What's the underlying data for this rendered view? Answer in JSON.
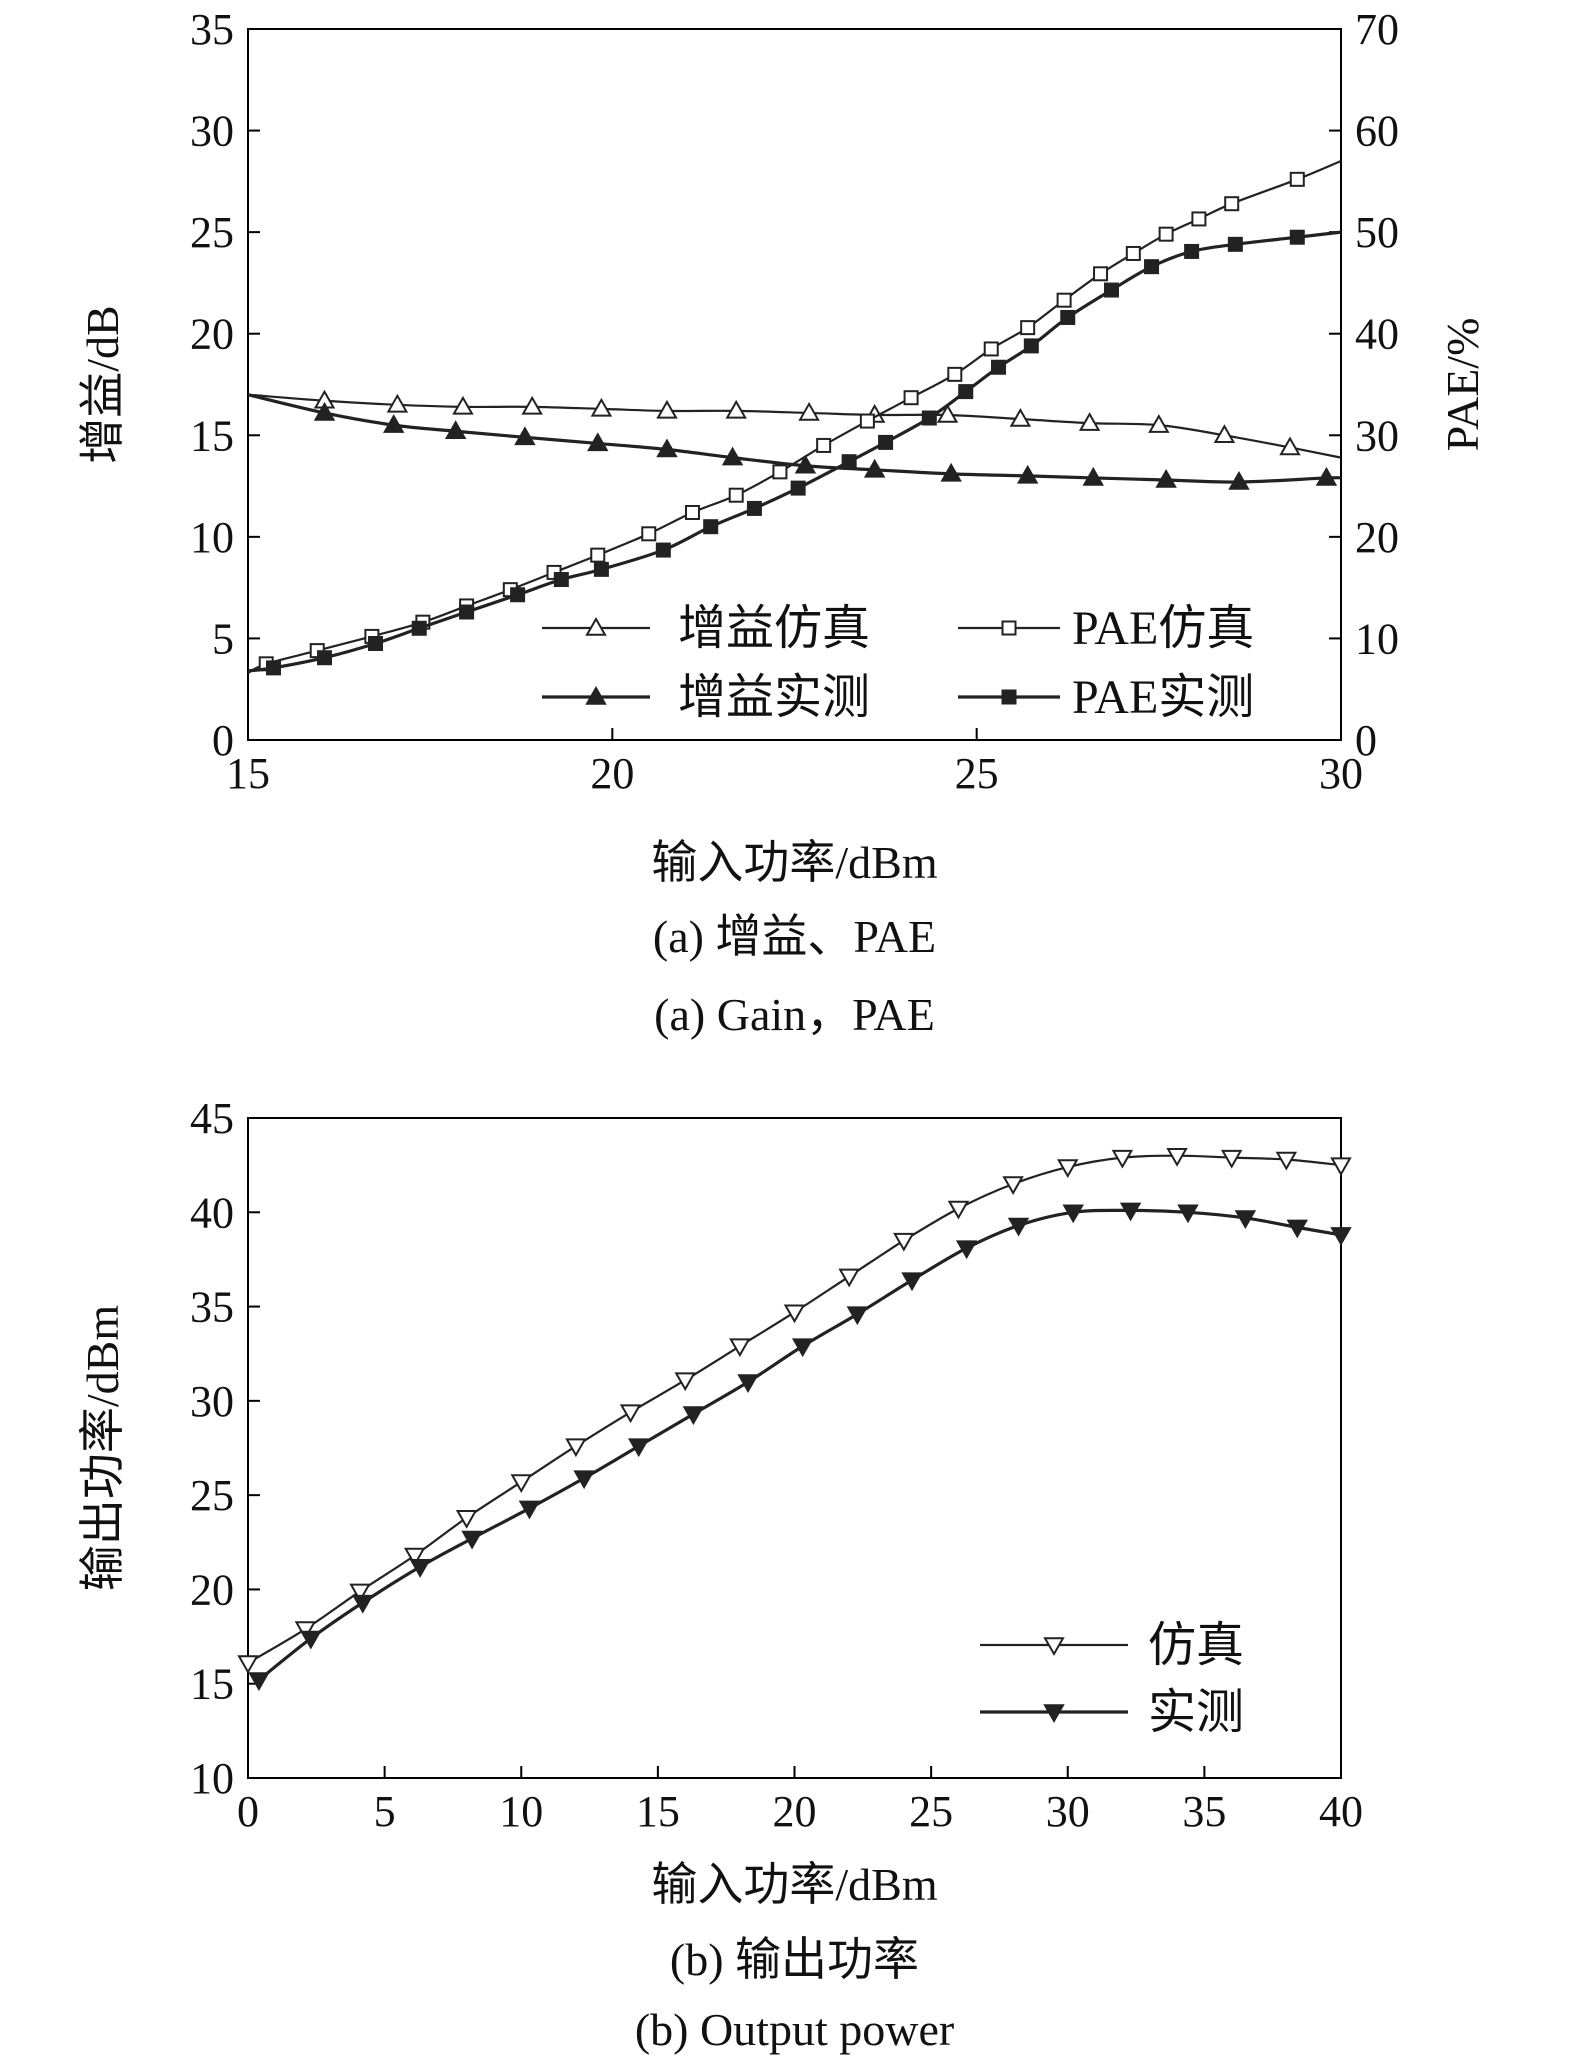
{
  "chart_data": [
    {
      "type": "line",
      "xlabel": "输入功率/dBm",
      "ylabel": "增益/dB",
      "y2label": "PAE/%",
      "caption_cn": "(a) 增益、PAE",
      "caption_en": "(a) Gain，PAE",
      "xlim": [
        15,
        30
      ],
      "ylim": [
        0,
        35
      ],
      "y2lim": [
        0,
        70
      ],
      "xticks": [
        "15",
        "20",
        "25",
        "30"
      ],
      "yticks": [
        "0",
        "5",
        "10",
        "15",
        "20",
        "25",
        "30",
        "35"
      ],
      "y2ticks": [
        "0",
        "10",
        "20",
        "30",
        "40",
        "50",
        "60",
        "70"
      ],
      "grid": false,
      "legend_position": "bottom-right, two columns",
      "series": [
        {
          "name": "增益仿真",
          "axis": "left",
          "marker": "triangle-up-open",
          "x": [
            15,
            16.05,
            17.05,
            17.95,
            18.9,
            19.85,
            20.75,
            21.7,
            22.7,
            23.6,
            24.6,
            25.6,
            26.55,
            27.5,
            28.4,
            29.3,
            30
          ],
          "y": [
            17.0,
            16.7,
            16.5,
            16.4,
            16.4,
            16.3,
            16.2,
            16.2,
            16.1,
            16.0,
            16.0,
            15.8,
            15.6,
            15.5,
            15.0,
            14.4,
            13.9
          ]
        },
        {
          "name": "增益实测",
          "axis": "left",
          "marker": "triangle-up-filled",
          "x": [
            15,
            16.05,
            17.0,
            17.85,
            18.8,
            19.8,
            20.75,
            21.65,
            22.65,
            23.6,
            24.65,
            25.7,
            26.6,
            27.6,
            28.6,
            29.8,
            30
          ],
          "y": [
            17.0,
            16.1,
            15.5,
            15.2,
            14.9,
            14.6,
            14.3,
            13.9,
            13.5,
            13.3,
            13.1,
            13.0,
            12.9,
            12.8,
            12.7,
            12.9,
            12.9
          ]
        },
        {
          "name": "PAE仿真",
          "axis": "right",
          "marker": "square-open",
          "x": [
            15,
            15.25,
            15.95,
            16.7,
            17.4,
            18.0,
            18.6,
            19.2,
            19.8,
            20.5,
            21.1,
            21.7,
            22.3,
            22.9,
            23.5,
            24.1,
            24.7,
            25.2,
            25.7,
            26.2,
            26.7,
            27.15,
            27.6,
            28.05,
            28.5,
            29.4,
            30
          ],
          "y": [
            6.6,
            7.5,
            8.8,
            10.2,
            11.6,
            13.2,
            14.8,
            16.5,
            18.2,
            20.3,
            22.4,
            24.1,
            26.4,
            29.0,
            31.4,
            33.7,
            36.0,
            38.5,
            40.6,
            43.3,
            45.9,
            47.9,
            49.8,
            51.3,
            52.8,
            55.2,
            57.0
          ]
        },
        {
          "name": "PAE实测",
          "axis": "right",
          "marker": "square-filled",
          "x": [
            15,
            15.35,
            16.05,
            16.75,
            17.35,
            18.0,
            18.7,
            19.3,
            19.85,
            20.7,
            21.35,
            21.95,
            22.55,
            23.25,
            23.75,
            24.35,
            24.85,
            25.3,
            25.75,
            26.25,
            26.85,
            27.4,
            27.95,
            28.55,
            29.4,
            30
          ],
          "y": [
            6.8,
            7.1,
            8.1,
            9.5,
            11.0,
            12.6,
            14.3,
            15.8,
            16.8,
            18.7,
            21.0,
            22.8,
            24.8,
            27.4,
            29.3,
            31.7,
            34.3,
            36.7,
            38.8,
            41.6,
            44.3,
            46.6,
            48.1,
            48.8,
            49.5,
            50.0
          ]
        }
      ]
    },
    {
      "type": "line",
      "xlabel": "输入功率/dBm",
      "ylabel": "输出功率/dBm",
      "caption_cn": "(b) 输出功率",
      "caption_en": "(b) Output power",
      "xlim": [
        0,
        40
      ],
      "ylim": [
        10,
        45
      ],
      "xticks": [
        "0",
        "5",
        "10",
        "15",
        "20",
        "25",
        "30",
        "35",
        "40"
      ],
      "yticks": [
        "10",
        "15",
        "20",
        "25",
        "30",
        "35",
        "40",
        "45"
      ],
      "grid": false,
      "legend_position": "lower-right",
      "series": [
        {
          "name": "仿真",
          "marker": "triangle-down-open",
          "x": [
            0,
            2.1,
            4.1,
            6.1,
            8.0,
            10.0,
            12.0,
            14.0,
            16.0,
            18.0,
            20.0,
            22.0,
            24.0,
            26.0,
            28.0,
            30.0,
            32.0,
            34.0,
            36.0,
            38.0,
            40.0
          ],
          "y": [
            16.1,
            17.9,
            19.9,
            21.8,
            23.8,
            25.7,
            27.6,
            29.4,
            31.1,
            32.9,
            34.7,
            36.6,
            38.5,
            40.2,
            41.5,
            42.4,
            42.9,
            43.0,
            42.9,
            42.8,
            42.5
          ]
        },
        {
          "name": "实测",
          "marker": "triangle-down-filled",
          "x": [
            0.4,
            2.3,
            4.2,
            6.3,
            8.2,
            10.3,
            12.3,
            14.3,
            16.3,
            18.3,
            20.3,
            22.3,
            24.3,
            26.3,
            28.2,
            30.2,
            32.3,
            34.4,
            36.5,
            38.4,
            40.0
          ],
          "y": [
            15.2,
            17.4,
            19.3,
            21.2,
            22.7,
            24.3,
            25.9,
            27.6,
            29.3,
            31.0,
            32.9,
            34.6,
            36.4,
            38.1,
            39.3,
            40.0,
            40.1,
            40.0,
            39.7,
            39.2,
            38.8
          ]
        }
      ]
    }
  ]
}
